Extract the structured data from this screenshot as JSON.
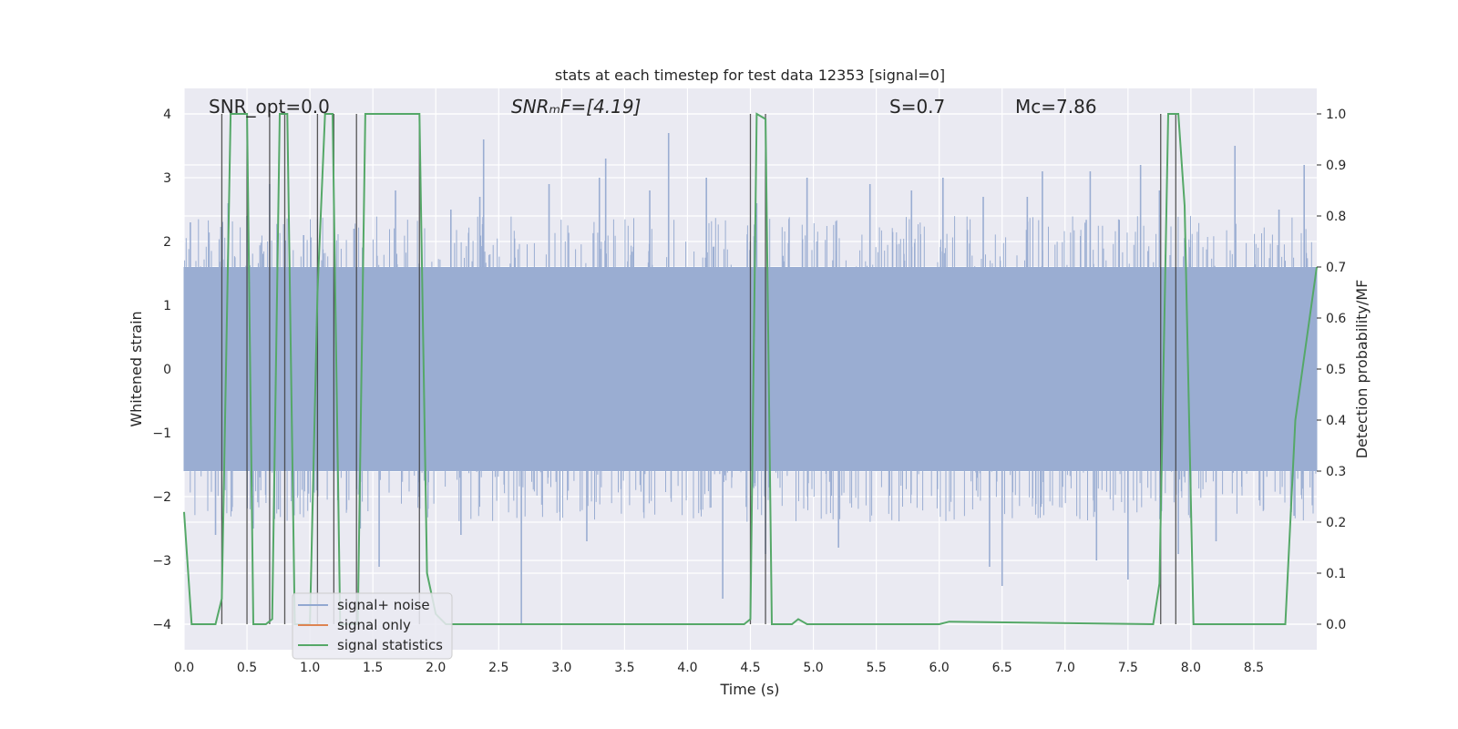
{
  "chart_data": {
    "type": "line",
    "title": "stats at each timestep for test data 12353 [signal=0]",
    "xlabel": "Time (s)",
    "ylabel": "Whitened strain",
    "ylabel_right": "Detection probability/MF",
    "xlim": [
      0,
      9
    ],
    "ylim": [
      -4.4,
      4.4
    ],
    "ylim_right": [
      -0.05,
      1.05
    ],
    "x_ticks": [
      0.0,
      0.5,
      1.0,
      1.5,
      2.0,
      2.5,
      3.0,
      3.5,
      4.0,
      4.5,
      5.0,
      5.5,
      6.0,
      6.5,
      7.0,
      7.5,
      8.0,
      8.5
    ],
    "x_tick_labels": [
      "0.0",
      "0.5",
      "1.0",
      "1.5",
      "2.0",
      "2.5",
      "3.0",
      "3.5",
      "4.0",
      "4.5",
      "5.0",
      "5.5",
      "6.0",
      "6.5",
      "7.0",
      "7.5",
      "8.0",
      "8.5"
    ],
    "y_ticks": [
      4,
      3,
      2,
      1,
      0,
      -1,
      -2,
      -3,
      -4
    ],
    "y_tick_labels": [
      "4",
      "3",
      "2",
      "1",
      "0",
      "−1",
      "−2",
      "−3",
      "−4"
    ],
    "y2_ticks": [
      1.0,
      0.9,
      0.8,
      0.7,
      0.6,
      0.5,
      0.4,
      0.3,
      0.2,
      0.1,
      0.0
    ],
    "y2_tick_labels": [
      "1.0",
      "0.9",
      "0.8",
      "0.7",
      "0.6",
      "0.5",
      "0.4",
      "0.3",
      "0.2",
      "0.1",
      "0.0"
    ],
    "annotations": [
      {
        "name": "snr-opt",
        "text": "SNR_opt=0.0",
        "x": 0.2,
        "y": 4.1
      },
      {
        "name": "snr-mf",
        "text": "SNRₘF=[4.19]",
        "x": 2.6,
        "y": 4.1
      },
      {
        "name": "spin",
        "text": "S=0.7",
        "x": 5.6,
        "y": 4.1
      },
      {
        "name": "chirp-mass",
        "text": "Mc=7.86",
        "x": 6.6,
        "y": 4.1
      }
    ],
    "legend": {
      "placement": "lower-left",
      "entries": [
        {
          "label": "signal+ noise",
          "color": "#92a8d1"
        },
        {
          "label": "signal only",
          "color": "#dd8452"
        },
        {
          "label": "signal statistics",
          "color": "#55a868"
        }
      ]
    },
    "noise_series": {
      "name": "signal+ noise",
      "color": "#9aadd2",
      "dense_band": [
        -1.6,
        1.6
      ],
      "peaks_up": [
        {
          "x": 0.05,
          "y": 2.3
        },
        {
          "x": 0.35,
          "y": 2.6
        },
        {
          "x": 0.5,
          "y": 2.4
        },
        {
          "x": 0.68,
          "y": 2.9
        },
        {
          "x": 0.95,
          "y": 2.1
        },
        {
          "x": 1.35,
          "y": 2.2
        },
        {
          "x": 1.68,
          "y": 2.8
        },
        {
          "x": 2.12,
          "y": 2.5
        },
        {
          "x": 2.35,
          "y": 2.7
        },
        {
          "x": 2.38,
          "y": 3.6
        },
        {
          "x": 2.9,
          "y": 2.9
        },
        {
          "x": 3.3,
          "y": 3.0
        },
        {
          "x": 3.35,
          "y": 3.3
        },
        {
          "x": 3.7,
          "y": 2.8
        },
        {
          "x": 3.85,
          "y": 3.7
        },
        {
          "x": 4.15,
          "y": 3.0
        },
        {
          "x": 4.55,
          "y": 2.6
        },
        {
          "x": 4.95,
          "y": 3.0
        },
        {
          "x": 5.45,
          "y": 2.9
        },
        {
          "x": 5.78,
          "y": 2.8
        },
        {
          "x": 6.03,
          "y": 3.0
        },
        {
          "x": 6.35,
          "y": 2.7
        },
        {
          "x": 6.7,
          "y": 2.7
        },
        {
          "x": 6.82,
          "y": 3.1
        },
        {
          "x": 7.2,
          "y": 3.1
        },
        {
          "x": 7.6,
          "y": 3.2
        },
        {
          "x": 7.75,
          "y": 2.8
        },
        {
          "x": 8.35,
          "y": 3.5
        },
        {
          "x": 8.7,
          "y": 2.5
        },
        {
          "x": 8.9,
          "y": 3.2
        }
      ],
      "peaks_down": [
        {
          "x": 0.25,
          "y": -2.6
        },
        {
          "x": 0.55,
          "y": -2.5
        },
        {
          "x": 0.75,
          "y": -2.2
        },
        {
          "x": 1.4,
          "y": -2.5
        },
        {
          "x": 1.55,
          "y": -3.1
        },
        {
          "x": 2.2,
          "y": -2.6
        },
        {
          "x": 2.68,
          "y": -4.0
        },
        {
          "x": 3.2,
          "y": -2.7
        },
        {
          "x": 4.28,
          "y": -3.6
        },
        {
          "x": 4.62,
          "y": -2.9
        },
        {
          "x": 5.2,
          "y": -2.8
        },
        {
          "x": 6.4,
          "y": -3.1
        },
        {
          "x": 6.5,
          "y": -3.4
        },
        {
          "x": 7.25,
          "y": -3.0
        },
        {
          "x": 7.5,
          "y": -3.3
        },
        {
          "x": 7.9,
          "y": -2.9
        },
        {
          "x": 8.2,
          "y": -2.7
        },
        {
          "x": 8.82,
          "y": -2.3
        }
      ]
    },
    "statistics_series": {
      "name": "signal statistics",
      "color": "#55a868",
      "x": [
        0.0,
        0.06,
        0.25,
        0.3,
        0.37,
        0.5,
        0.55,
        0.65,
        0.7,
        0.76,
        0.82,
        0.88,
        1.0,
        1.06,
        1.12,
        1.18,
        1.24,
        1.31,
        1.38,
        1.44,
        1.87,
        1.93,
        2.0,
        2.08,
        4.45,
        4.5,
        4.55,
        4.62,
        4.67,
        4.83,
        4.88,
        4.95,
        6.0,
        6.08,
        7.7,
        7.75,
        7.82,
        7.9,
        7.95,
        8.02,
        8.08,
        8.75,
        8.83,
        9.0
      ],
      "y": [
        0.22,
        0.0,
        0.0,
        0.05,
        1.0,
        1.0,
        0.0,
        0.0,
        0.01,
        1.0,
        1.0,
        0.0,
        0.0,
        0.65,
        1.0,
        1.0,
        0.0,
        0.0,
        0.0,
        1.0,
        1.0,
        0.1,
        0.02,
        0.0,
        0.0,
        0.01,
        1.0,
        0.99,
        0.0,
        0.0,
        0.01,
        0.0,
        0.0,
        0.005,
        0.0,
        0.08,
        1.0,
        1.0,
        0.82,
        0.0,
        0.0,
        0.0,
        0.4,
        0.7
      ]
    },
    "detection_markers_x": [
      0.3,
      0.5,
      0.68,
      0.8,
      1.06,
      1.19,
      1.37,
      1.87,
      4.5,
      4.62,
      7.76,
      7.88
    ]
  }
}
